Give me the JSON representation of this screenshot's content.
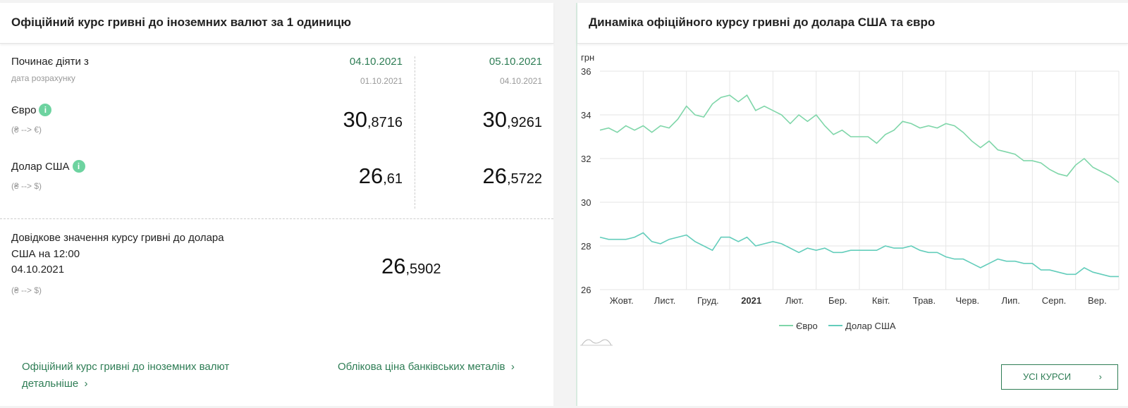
{
  "left": {
    "title": "Офіційний курс гривні до іноземних валют за 1 одиницю",
    "starts_label": "Починає діяти з",
    "calc_label": "дата розрахунку",
    "col1": {
      "date": "04.10.2021",
      "calc_date": "01.10.2021",
      "eur_int": "30",
      "eur_frac": ",8716",
      "usd_int": "26",
      "usd_frac": ",61"
    },
    "col2": {
      "date": "05.10.2021",
      "calc_date": "04.10.2021",
      "eur_int": "30",
      "eur_frac": ",9261",
      "usd_int": "26",
      "usd_frac": ",5722"
    },
    "eur_label": "Євро",
    "eur_sub": "(₴ --> €)",
    "usd_label": "Долар США",
    "usd_sub": "(₴ --> $)",
    "info_glyph": "i",
    "ref_label_1": "Довідкове значення курсу гривні до долара",
    "ref_label_2": "США на 12:00",
    "ref_date": "04.10.2021",
    "ref_sub": "(₴ --> $)",
    "ref_int": "26",
    "ref_frac": ",5902",
    "link_official_1": "Офіційний курс гривні до іноземних валют",
    "link_official_2": "детальніше",
    "link_metals": "Облікова ціна банківських металів",
    "chevron": "›"
  },
  "right": {
    "title": "Динаміка офіційного курсу гривні до долара США та євро",
    "all_rates_button": "УСІ КУРСИ",
    "chevron": "›"
  },
  "chart_data": {
    "type": "line",
    "ylabel": "грн",
    "ylim": [
      26,
      36
    ],
    "yticks": [
      26,
      28,
      30,
      32,
      34,
      36
    ],
    "x_tick_labels": [
      "Жовт.",
      "Лист.",
      "Груд.",
      "2021",
      "Лют.",
      "Бер.",
      "Квіт.",
      "Трав.",
      "Черв.",
      "Лип.",
      "Серп.",
      "Вер."
    ],
    "legend": [
      "Євро",
      "Долар США"
    ],
    "legend_position": "bottom",
    "grid": true,
    "colors": {
      "eur": "#7fd6a9",
      "usd": "#63cdbb"
    },
    "series": [
      {
        "name": "Євро",
        "values": [
          33.3,
          33.4,
          33.2,
          33.5,
          33.3,
          33.5,
          33.2,
          33.5,
          33.4,
          33.8,
          34.4,
          34.0,
          33.9,
          34.5,
          34.8,
          34.9,
          34.6,
          34.9,
          34.2,
          34.4,
          34.2,
          34.0,
          33.6,
          34.0,
          33.7,
          34.0,
          33.5,
          33.1,
          33.3,
          33.0,
          33.0,
          33.0,
          32.7,
          33.1,
          33.3,
          33.7,
          33.6,
          33.4,
          33.5,
          33.4,
          33.6,
          33.5,
          33.2,
          32.8,
          32.5,
          32.8,
          32.4,
          32.3,
          32.2,
          31.9,
          31.9,
          31.8,
          31.5,
          31.3,
          31.2,
          31.7,
          32.0,
          31.6,
          31.4,
          31.2,
          30.9
        ]
      },
      {
        "name": "Долар США",
        "values": [
          28.4,
          28.3,
          28.3,
          28.3,
          28.4,
          28.6,
          28.2,
          28.1,
          28.3,
          28.4,
          28.5,
          28.2,
          28.0,
          27.8,
          28.4,
          28.4,
          28.2,
          28.4,
          28.0,
          28.1,
          28.2,
          28.1,
          27.9,
          27.7,
          27.9,
          27.8,
          27.9,
          27.7,
          27.7,
          27.8,
          27.8,
          27.8,
          27.8,
          28.0,
          27.9,
          27.9,
          28.0,
          27.8,
          27.7,
          27.7,
          27.5,
          27.4,
          27.4,
          27.2,
          27.0,
          27.2,
          27.4,
          27.3,
          27.3,
          27.2,
          27.2,
          26.9,
          26.9,
          26.8,
          26.7,
          26.7,
          27.0,
          26.8,
          26.7,
          26.6,
          26.6
        ]
      }
    ]
  }
}
